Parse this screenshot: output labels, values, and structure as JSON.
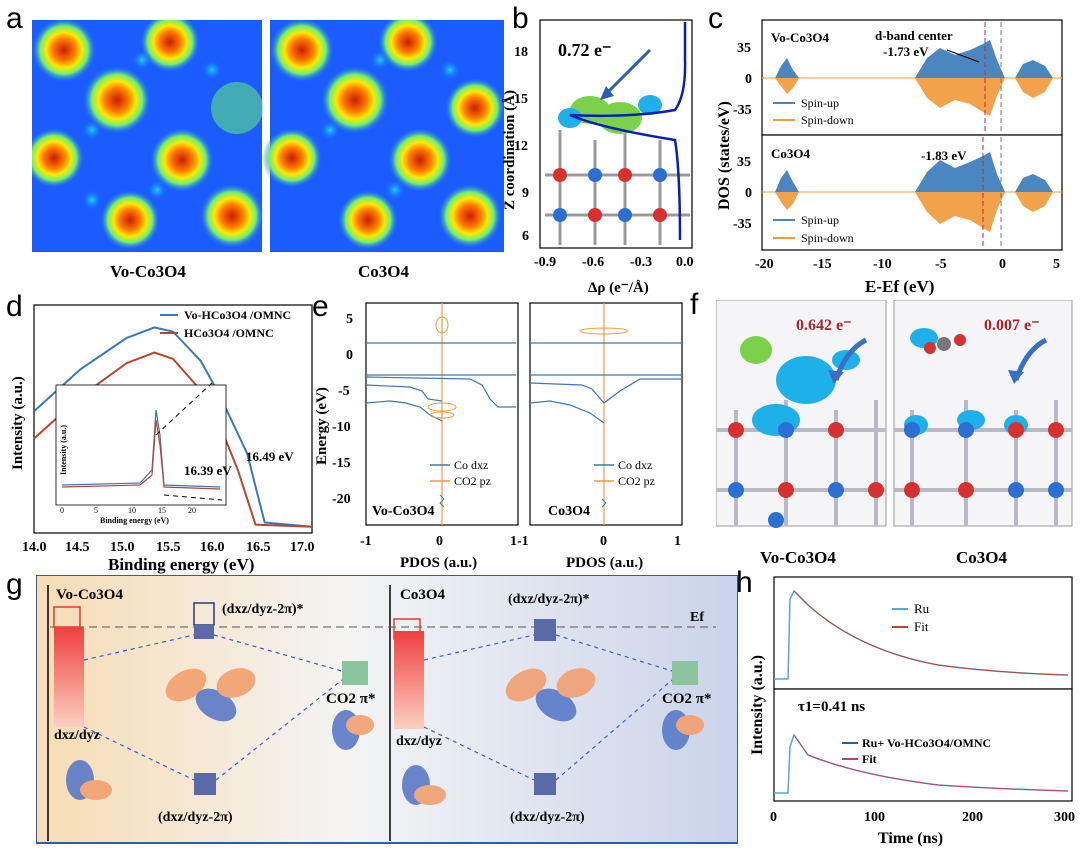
{
  "panels": {
    "a": {
      "letter": "a",
      "captions": [
        "Vo-Co3O4",
        "Co3O4"
      ]
    },
    "b": {
      "letter": "b",
      "charge": "0.72 e⁻",
      "xlabel": "Δρ (e⁻/Å)",
      "ylabel": "Z coordination (Å)",
      "xticks": [
        "-0.9",
        "-0.6",
        "-0.3",
        "0.0"
      ],
      "yticks": [
        "18",
        "15",
        "12",
        "9",
        "6"
      ]
    },
    "c": {
      "letter": "c",
      "top_label": "Vo-Co3O4",
      "bottom_label": "Co3O4",
      "dband_title": "d-band center",
      "dband_top": "-1.73 eV",
      "dband_bottom": "-1.83 eV",
      "legend_up": "Spin-up",
      "legend_down": "Spin-down",
      "ylabel": "DOS (states/eV)",
      "xlabel": "E-Ef (eV)",
      "xticks": [
        "-20",
        "-15",
        "-10",
        "-5",
        "0",
        "5"
      ],
      "yticks": [
        "35",
        "0",
        "-35"
      ]
    },
    "d": {
      "letter": "d",
      "legend": [
        "Vo-HCo3O4 /OMNC",
        "HCo3O4 /OMNC"
      ],
      "colors": [
        "#3a78b5",
        "#b8452e"
      ],
      "ylabel": "Intensity (a.u.)",
      "xlabel": "Binding energy (eV)",
      "xticks": [
        "14.0",
        "14.5",
        "15.0",
        "15.5",
        "16.0",
        "16.5",
        "17.0"
      ],
      "ann1": "16.39 eV",
      "ann2": "16.49 eV",
      "inset_xlabel": "Binding energy (eV)",
      "inset_ylabel": "Intensity (a.u.)",
      "inset_xticks": [
        "0",
        "5",
        "10",
        "15",
        "20"
      ]
    },
    "e": {
      "letter": "e",
      "ylabel": "Energy (eV)",
      "xlabel": "PDOS (a.u.)",
      "yticks": [
        "5",
        "0",
        "-5",
        "-10",
        "-15",
        "-20"
      ],
      "xticks": [
        "-1",
        "0",
        "1-1",
        "0",
        "1"
      ],
      "left_label": "Vo-Co3O4",
      "right_label": "Co3O4",
      "legend": [
        "Co dxz",
        "CO2 pz"
      ]
    },
    "f": {
      "letter": "f",
      "charge_left": "0.642 e⁻",
      "charge_right": "0.007 e⁻",
      "captions": [
        "Vo-Co3O4",
        "Co3O4"
      ]
    },
    "g": {
      "letter": "g",
      "left_title": "Vo-Co3O4",
      "right_title": "Co3O4",
      "upper_orbital": "(dxz/dyz-2π)*",
      "lower_orbital": "(dxz/dyz-2π)",
      "d_label": "dxz/dyz",
      "co2_label": "CO2 π*",
      "ef_label": "Ef"
    },
    "h": {
      "letter": "h",
      "top_legend": [
        "Ru",
        "Fit"
      ],
      "bottom_legend": [
        "Ru+ Vo-HCo3O4/OMNC",
        "Fit"
      ],
      "tau": "τ1=0.41 ns",
      "ylabel": "Intensity (a.u.)",
      "xlabel": "Time (ns)",
      "xticks": [
        "0",
        "100",
        "200",
        "300"
      ]
    }
  },
  "chart_data": [
    {
      "type": "line",
      "panel": "d",
      "xlabel": "Binding energy (eV)",
      "ylabel": "Intensity (a.u.)",
      "xlim": [
        14.0,
        17.0
      ],
      "series": [
        {
          "name": "Vo-HCo3O4 /OMNC",
          "x": [
            14.0,
            14.5,
            15.0,
            15.3,
            15.5,
            15.8,
            16.0,
            16.3,
            16.49,
            17.0
          ],
          "y": [
            0.58,
            0.78,
            0.93,
            0.98,
            0.96,
            0.82,
            0.66,
            0.38,
            0.05,
            0.03
          ]
        },
        {
          "name": "HCo3O4 /OMNC",
          "x": [
            14.0,
            14.5,
            15.0,
            15.3,
            15.5,
            15.8,
            16.0,
            16.2,
            16.39,
            17.0
          ],
          "y": [
            0.45,
            0.65,
            0.81,
            0.86,
            0.83,
            0.68,
            0.52,
            0.3,
            0.04,
            0.03
          ]
        }
      ]
    }
  ]
}
